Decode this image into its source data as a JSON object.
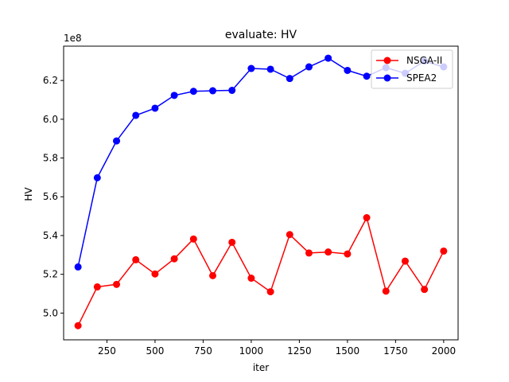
{
  "chart_data": {
    "type": "line",
    "title": "evaluate: HV",
    "xlabel": "iter",
    "ylabel": "HV",
    "y_offset_label": "1e8",
    "xlim": [
      25,
      2075
    ],
    "ylim": [
      4.862,
      6.377
    ],
    "x_ticks": [
      250,
      500,
      750,
      1000,
      1250,
      1500,
      1750,
      2000
    ],
    "x_tick_labels": [
      "250",
      "500",
      "750",
      "1000",
      "1250",
      "1500",
      "1750",
      "2000"
    ],
    "y_ticks": [
      5.0,
      5.2,
      5.4,
      5.6,
      5.8,
      6.0,
      6.2
    ],
    "y_tick_labels": [
      "5.0",
      "5.2",
      "5.4",
      "5.6",
      "5.8",
      "6.0",
      "6.2"
    ],
    "grid": false,
    "legend_position": "top-right",
    "x": [
      100,
      200,
      300,
      400,
      500,
      600,
      700,
      800,
      900,
      1000,
      1100,
      1200,
      1300,
      1400,
      1500,
      1600,
      1700,
      1800,
      1900,
      2000
    ],
    "series": [
      {
        "name": "NSGA-II",
        "color": "#ff0000",
        "values": [
          4.935,
          5.135,
          5.148,
          5.275,
          5.202,
          5.28,
          5.382,
          5.193,
          5.365,
          5.18,
          5.11,
          5.405,
          5.31,
          5.315,
          5.305,
          5.492,
          5.113,
          5.268,
          5.122,
          5.32
        ]
      },
      {
        "name": "SPEA2",
        "color": "#0000ff",
        "values": [
          5.238,
          5.698,
          5.888,
          6.02,
          6.057,
          6.123,
          6.144,
          6.147,
          6.149,
          6.262,
          6.258,
          6.21,
          6.27,
          6.315,
          6.252,
          6.222,
          6.266,
          6.237,
          6.3,
          6.27
        ]
      }
    ]
  }
}
